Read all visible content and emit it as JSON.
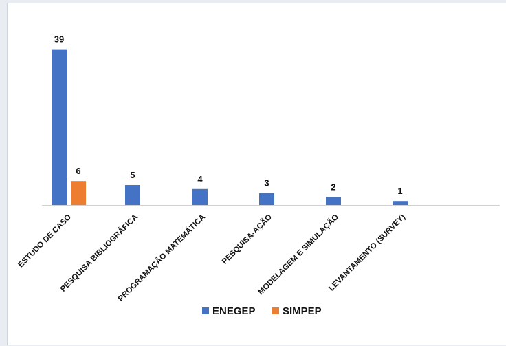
{
  "chart_data": {
    "type": "bar",
    "categories": [
      "ESTUDO DE CASO",
      "PESQUISA BIBLIOGRÁFICA",
      "PROGRAMAÇÃO MATEMÁTICA",
      "PESQUISA-AÇÃO",
      "MODELAGEM E SIMULAÇÃO",
      "LEVANTAMENTO (SURVEY)"
    ],
    "series": [
      {
        "name": "ENEGEP",
        "color": "#4472c4",
        "values": [
          39,
          5,
          4,
          3,
          2,
          1
        ]
      },
      {
        "name": "SIMPEP",
        "color": "#ed7d31",
        "values": [
          6,
          null,
          null,
          null,
          null,
          null
        ]
      }
    ],
    "ylim": [
      0,
      41
    ],
    "grid": false,
    "legend_position": "bottom"
  }
}
